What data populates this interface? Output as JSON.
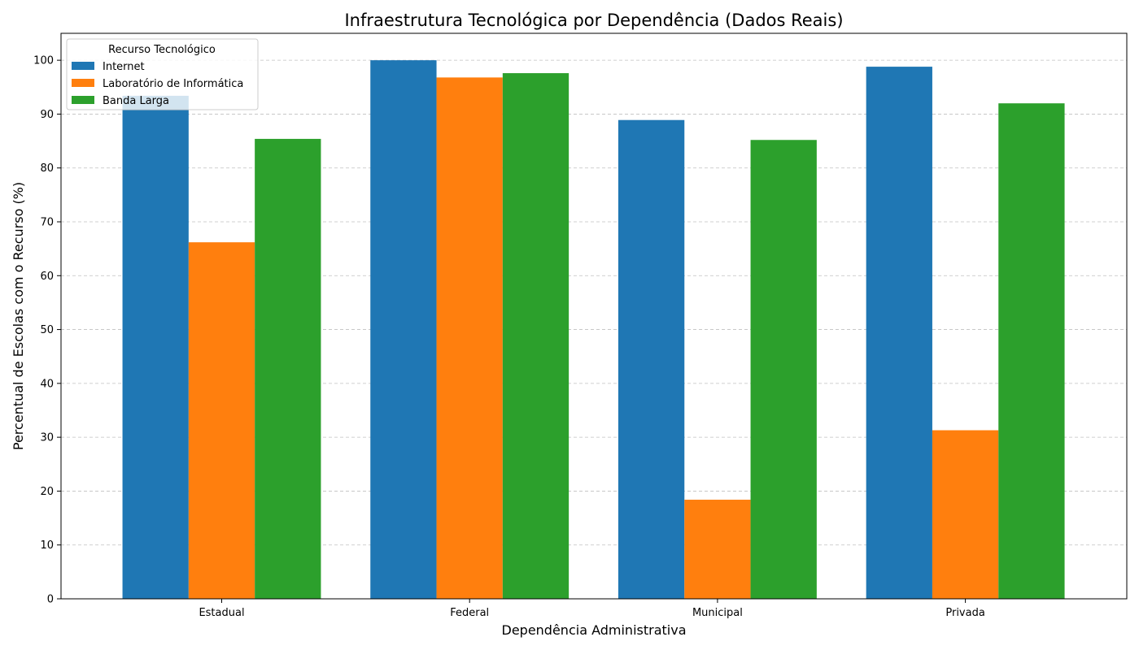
{
  "chart_data": {
    "type": "bar",
    "title": "Infraestrutura Tecnológica por Dependência (Dados Reais)",
    "xlabel": "Dependência Administrativa",
    "ylabel": "Percentual de Escolas com o Recurso (%)",
    "categories": [
      "Estadual",
      "Federal",
      "Municipal",
      "Privada"
    ],
    "series": [
      {
        "name": "Internet",
        "color": "#1f77b4",
        "values": [
          93.4,
          100.0,
          88.9,
          98.8
        ]
      },
      {
        "name": "Laboratório de Informática",
        "color": "#ff7f0e",
        "values": [
          66.2,
          96.8,
          18.4,
          31.3
        ]
      },
      {
        "name": "Banda Larga",
        "color": "#2ca02c",
        "values": [
          85.4,
          97.6,
          85.2,
          92.0
        ]
      }
    ],
    "ylim": [
      0,
      105
    ],
    "yticks": [
      "0",
      "10",
      "20",
      "30",
      "40",
      "50",
      "60",
      "70",
      "80",
      "90",
      "100"
    ],
    "grid": "y-dashed",
    "legend": {
      "title": "Recurso Tecnológico",
      "placement": "top-left"
    }
  }
}
